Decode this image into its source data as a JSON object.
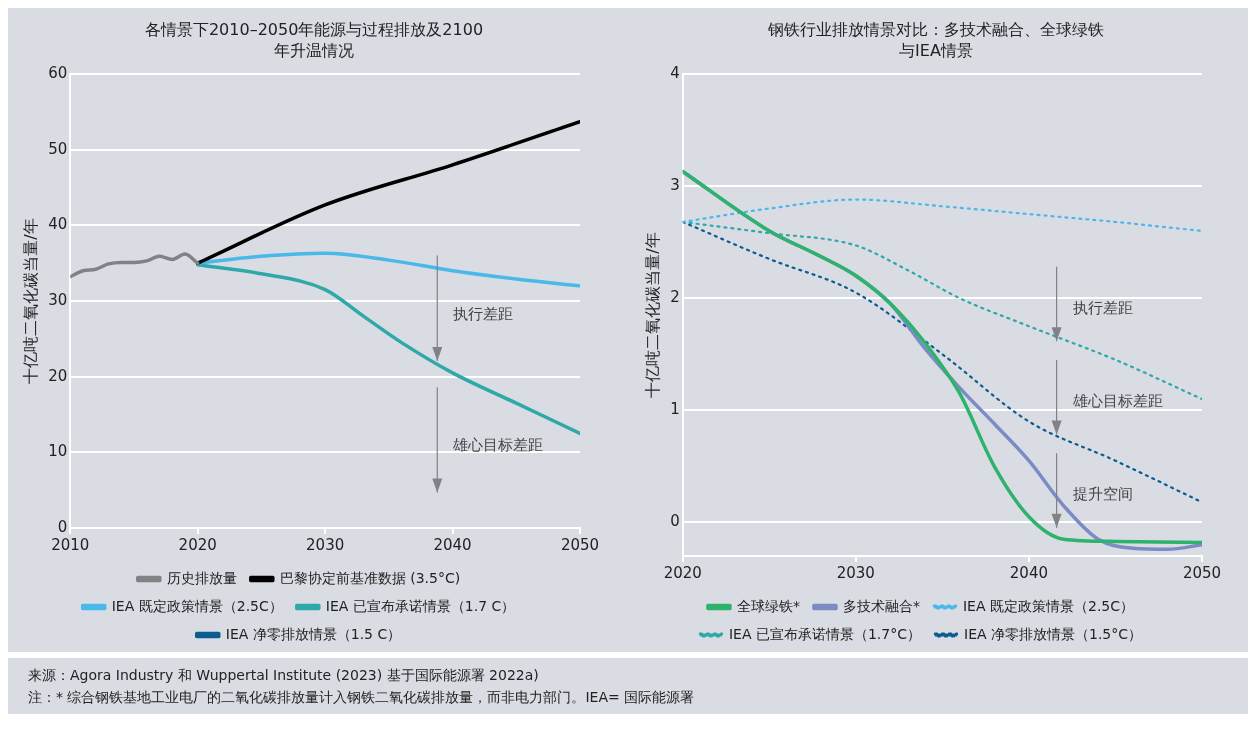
{
  "chart_data": [
    {
      "type": "line",
      "title": "各情景下2010–2050年能源与过程排放及2100年升温情况",
      "ylabel": "十亿吨二氧化碳当量/年",
      "xlim": [
        2010,
        2050
      ],
      "xticks": [
        2010,
        2020,
        2030,
        2040,
        2050
      ],
      "ylim": [
        0,
        60
      ],
      "yticks": [
        0,
        10,
        20,
        30,
        40,
        50,
        60
      ],
      "grid": "y",
      "legend": "bottom",
      "marker": "none",
      "series": [
        {
          "name": "历史排放量",
          "color": "#808285",
          "x": [
            2010,
            2011,
            2012,
            2013,
            2014,
            2015,
            2016,
            2017,
            2018,
            2019,
            2020
          ],
          "values": [
            33.2,
            34.0,
            34.2,
            34.9,
            35.1,
            35.1,
            35.3,
            35.9,
            35.5,
            36.2,
            35.0
          ]
        },
        {
          "name": "巴黎协定前基准数据 (3.5°C)",
          "color": "#000000",
          "x": [
            2020,
            2030,
            2040,
            2050
          ],
          "values": [
            35.0,
            42.7,
            48.0,
            53.7
          ]
        },
        {
          "name": "IEA 既定政策情景（2.5C）",
          "color": "#4ab8e8",
          "x": [
            2020,
            2025,
            2030,
            2035,
            2040,
            2045,
            2050
          ],
          "values": [
            35.0,
            35.9,
            36.3,
            35.4,
            34.0,
            32.9,
            32.0
          ]
        },
        {
          "name": "IEA 已宣布承诺情景（1.7 C）",
          "color": "#2ea8a8",
          "x": [
            2020,
            2025,
            2030,
            2033,
            2036,
            2040,
            2045,
            2050
          ],
          "values": [
            34.8,
            33.6,
            31.5,
            28.0,
            24.5,
            20.5,
            16.5,
            12.5
          ]
        },
        {
          "name": "IEA 净零排放情景（1.5 C）",
          "color": "#0b5c8f"
        }
      ],
      "annotations": [
        "执行差距",
        "雄心目标差距",
        "来源：Agora Industry 和 Wuppertal Institute (2023) 基于国际能源署 2022a)",
        "注：* 综合钢铁基地工业电厂的二氧化碳排放量计入钢铁二氧化碳排放量，而非电力部门。IEA= 国际能源署"
      ]
    },
    {
      "type": "line",
      "title": "钢铁行业排放情景对比：多技术融合、全球绿铁与IEA情景",
      "ylabel": "十亿吨二氧化碳当量/年",
      "xlim": [
        2020,
        2050
      ],
      "xticks": [
        2020,
        2030,
        2040,
        2050
      ],
      "ylim": [
        -0.3,
        4
      ],
      "yticks": [
        0,
        1,
        2,
        3,
        4
      ],
      "grid": "y",
      "legend": "bottom",
      "marker": "none",
      "series": [
        {
          "name": "全球绿铁*",
          "color": "#2db36b",
          "x": [
            2020,
            2025,
            2028,
            2030,
            2032,
            2034,
            2036,
            2038,
            2040,
            2042,
            2045,
            2050
          ],
          "values": [
            3.13,
            2.6,
            2.37,
            2.2,
            1.95,
            1.6,
            1.15,
            0.5,
            0.05,
            -0.15,
            -0.17,
            -0.18
          ]
        },
        {
          "name": "多技术融合*",
          "color": "#7b8cc4",
          "x": [
            2020,
            2025,
            2028,
            2030,
            2032,
            2034,
            2036,
            2038,
            2040,
            2042,
            2044,
            2046,
            2048,
            2050
          ],
          "values": [
            3.13,
            2.6,
            2.37,
            2.2,
            1.95,
            1.55,
            1.2,
            0.88,
            0.55,
            0.15,
            -0.15,
            -0.23,
            -0.24,
            -0.2
          ]
        },
        {
          "name": "IEA 既定政策情景（2.5C）",
          "color": "#4ab8e8",
          "line_style": "dotted",
          "x": [
            2020,
            2025,
            2030,
            2035,
            2040,
            2045,
            2050
          ],
          "values": [
            2.68,
            2.8,
            2.88,
            2.82,
            2.75,
            2.68,
            2.6
          ]
        },
        {
          "name": "IEA 已宣布承诺情景（1.7°C）",
          "color": "#2ea8a8",
          "line_style": "dotted",
          "x": [
            2020,
            2025,
            2030,
            2033,
            2036,
            2040,
            2045,
            2050
          ],
          "values": [
            2.68,
            2.58,
            2.47,
            2.25,
            2.0,
            1.75,
            1.45,
            1.1
          ]
        },
        {
          "name": "IEA 净零排放情景（1.5°C）",
          "color": "#0b5c8f",
          "line_style": "dotted",
          "x": [
            2020,
            2025,
            2030,
            2035,
            2040,
            2045,
            2050
          ],
          "values": [
            2.68,
            2.35,
            2.05,
            1.5,
            0.9,
            0.55,
            0.18
          ]
        }
      ],
      "annotations": [
        "执行差距",
        "雄心目标差距",
        "提升空间"
      ]
    }
  ]
}
